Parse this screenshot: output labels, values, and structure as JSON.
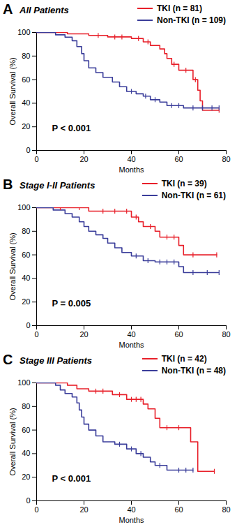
{
  "chart_data": [
    {
      "type": "line",
      "label": "A",
      "title": "All Patients",
      "x_label": "Months",
      "y_label": "Overall Survival (%)",
      "xlim": [
        0,
        80
      ],
      "ylim": [
        0,
        100
      ],
      "xticks": [
        0,
        20,
        40,
        60,
        80
      ],
      "yticks": [
        0,
        20,
        40,
        60,
        80,
        100
      ],
      "legend": "top-right",
      "line_style": "step",
      "marker": "vertical_tick",
      "annotations": [
        "P < 0.001"
      ],
      "series": [
        {
          "name": "TKI (n = 81)",
          "color": "#e8202a",
          "x": [
            0,
            13,
            22,
            30,
            40,
            45,
            48,
            52,
            54,
            55,
            57,
            60,
            66,
            68,
            69,
            70,
            77
          ],
          "values": [
            100,
            98.8,
            97.5,
            96.2,
            94.9,
            92,
            89,
            86,
            82,
            78,
            73,
            68,
            60,
            51,
            42,
            34,
            34
          ],
          "censored": {
            "x": [
              26,
              33,
              36,
              43,
              47,
              58,
              63,
              67,
              77
            ],
            "y": [
              97.5,
              96.2,
              96.2,
              94.9,
              92,
              73,
              68,
              60,
              34
            ]
          }
        },
        {
          "name": "Non-TKI (n = 109)",
          "color": "#3a3d9a",
          "x": [
            0,
            8,
            12,
            15,
            17,
            19,
            20,
            22,
            25,
            28,
            32,
            35,
            38,
            42,
            45,
            48,
            52,
            55,
            62,
            77
          ],
          "values": [
            100,
            98,
            96,
            93,
            88,
            82,
            76,
            70,
            66,
            62,
            58,
            54,
            50,
            48,
            46,
            43,
            41,
            38,
            36,
            36
          ],
          "censored": {
            "x": [
              40,
              46,
              50,
              57,
              60,
              66,
              70,
              74,
              77
            ],
            "y": [
              50,
              46,
              43,
              38,
              38,
              36,
              36,
              36,
              36
            ]
          }
        }
      ]
    },
    {
      "type": "line",
      "label": "B",
      "title": "Stage I-II Patients",
      "x_label": "Months",
      "y_label": "Overall Survival (%)",
      "xlim": [
        0,
        80
      ],
      "ylim": [
        0,
        100
      ],
      "xticks": [
        0,
        20,
        40,
        60,
        80
      ],
      "yticks": [
        0,
        20,
        40,
        60,
        80,
        100
      ],
      "legend": "top-right",
      "line_style": "step",
      "marker": "vertical_tick",
      "annotations": [
        "P = 0.005"
      ],
      "series": [
        {
          "name": "TKI (n = 39)",
          "color": "#e8202a",
          "x": [
            0,
            22,
            40,
            43,
            45,
            50,
            52,
            60,
            62,
            76
          ],
          "values": [
            100,
            97,
            92,
            88,
            84,
            80,
            75,
            68,
            60,
            60
          ],
          "censored": {
            "x": [
              10,
              18,
              28,
              33,
              38,
              42,
              48,
              55,
              58,
              66,
              76
            ],
            "y": [
              100,
              100,
              97,
              97,
              97,
              92,
              84,
              75,
              75,
              60,
              60
            ]
          }
        },
        {
          "name": "Non-TKI (n = 61)",
          "color": "#3a3d9a",
          "x": [
            0,
            7,
            12,
            15,
            18,
            20,
            22,
            25,
            28,
            30,
            33,
            36,
            40,
            45,
            50,
            60,
            62,
            77
          ],
          "values": [
            100,
            98,
            95,
            92,
            88,
            84,
            80,
            77,
            74,
            70,
            66,
            62,
            59,
            55,
            54,
            50,
            45,
            45
          ],
          "censored": {
            "x": [
              42,
              47,
              52,
              55,
              58,
              66,
              72,
              77
            ],
            "y": [
              59,
              55,
              54,
              54,
              54,
              45,
              45,
              45
            ]
          }
        }
      ]
    },
    {
      "type": "line",
      "label": "C",
      "title": "Stage III Patients",
      "x_label": "Months",
      "y_label": "Overall Survival (%)",
      "xlim": [
        0,
        80
      ],
      "ylim": [
        0,
        100
      ],
      "xticks": [
        0,
        20,
        40,
        60,
        80
      ],
      "yticks": [
        0,
        20,
        40,
        60,
        80,
        100
      ],
      "legend": "top-right",
      "line_style": "step",
      "marker": "vertical_tick",
      "annotations": [
        "P < 0.001"
      ],
      "series": [
        {
          "name": "TKI (n = 42)",
          "color": "#e8202a",
          "x": [
            0,
            13,
            17,
            22,
            32,
            38,
            45,
            47,
            50,
            52,
            65,
            68,
            75
          ],
          "values": [
            100,
            98,
            95,
            93,
            90,
            86,
            82,
            78,
            70,
            62,
            50,
            25,
            25
          ],
          "censored": {
            "x": [
              25,
              28,
              35,
              40,
              42,
              44,
              55,
              60,
              75
            ],
            "y": [
              93,
              93,
              90,
              86,
              86,
              86,
              62,
              62,
              25
            ]
          }
        },
        {
          "name": "Non-TKI (n = 48)",
          "color": "#3a3d9a",
          "x": [
            0,
            8,
            10,
            12,
            15,
            17,
            18,
            19,
            20,
            22,
            25,
            28,
            33,
            38,
            42,
            45,
            48,
            50,
            55,
            66
          ],
          "values": [
            100,
            98,
            94,
            91,
            88,
            83,
            77,
            71,
            65,
            60,
            55,
            50,
            48,
            44,
            40,
            37,
            33,
            30,
            26,
            26
          ],
          "censored": {
            "x": [
              35,
              40,
              44,
              52,
              60,
              63,
              66
            ],
            "y": [
              48,
              44,
              40,
              30,
              26,
              26,
              26
            ]
          }
        }
      ]
    }
  ]
}
